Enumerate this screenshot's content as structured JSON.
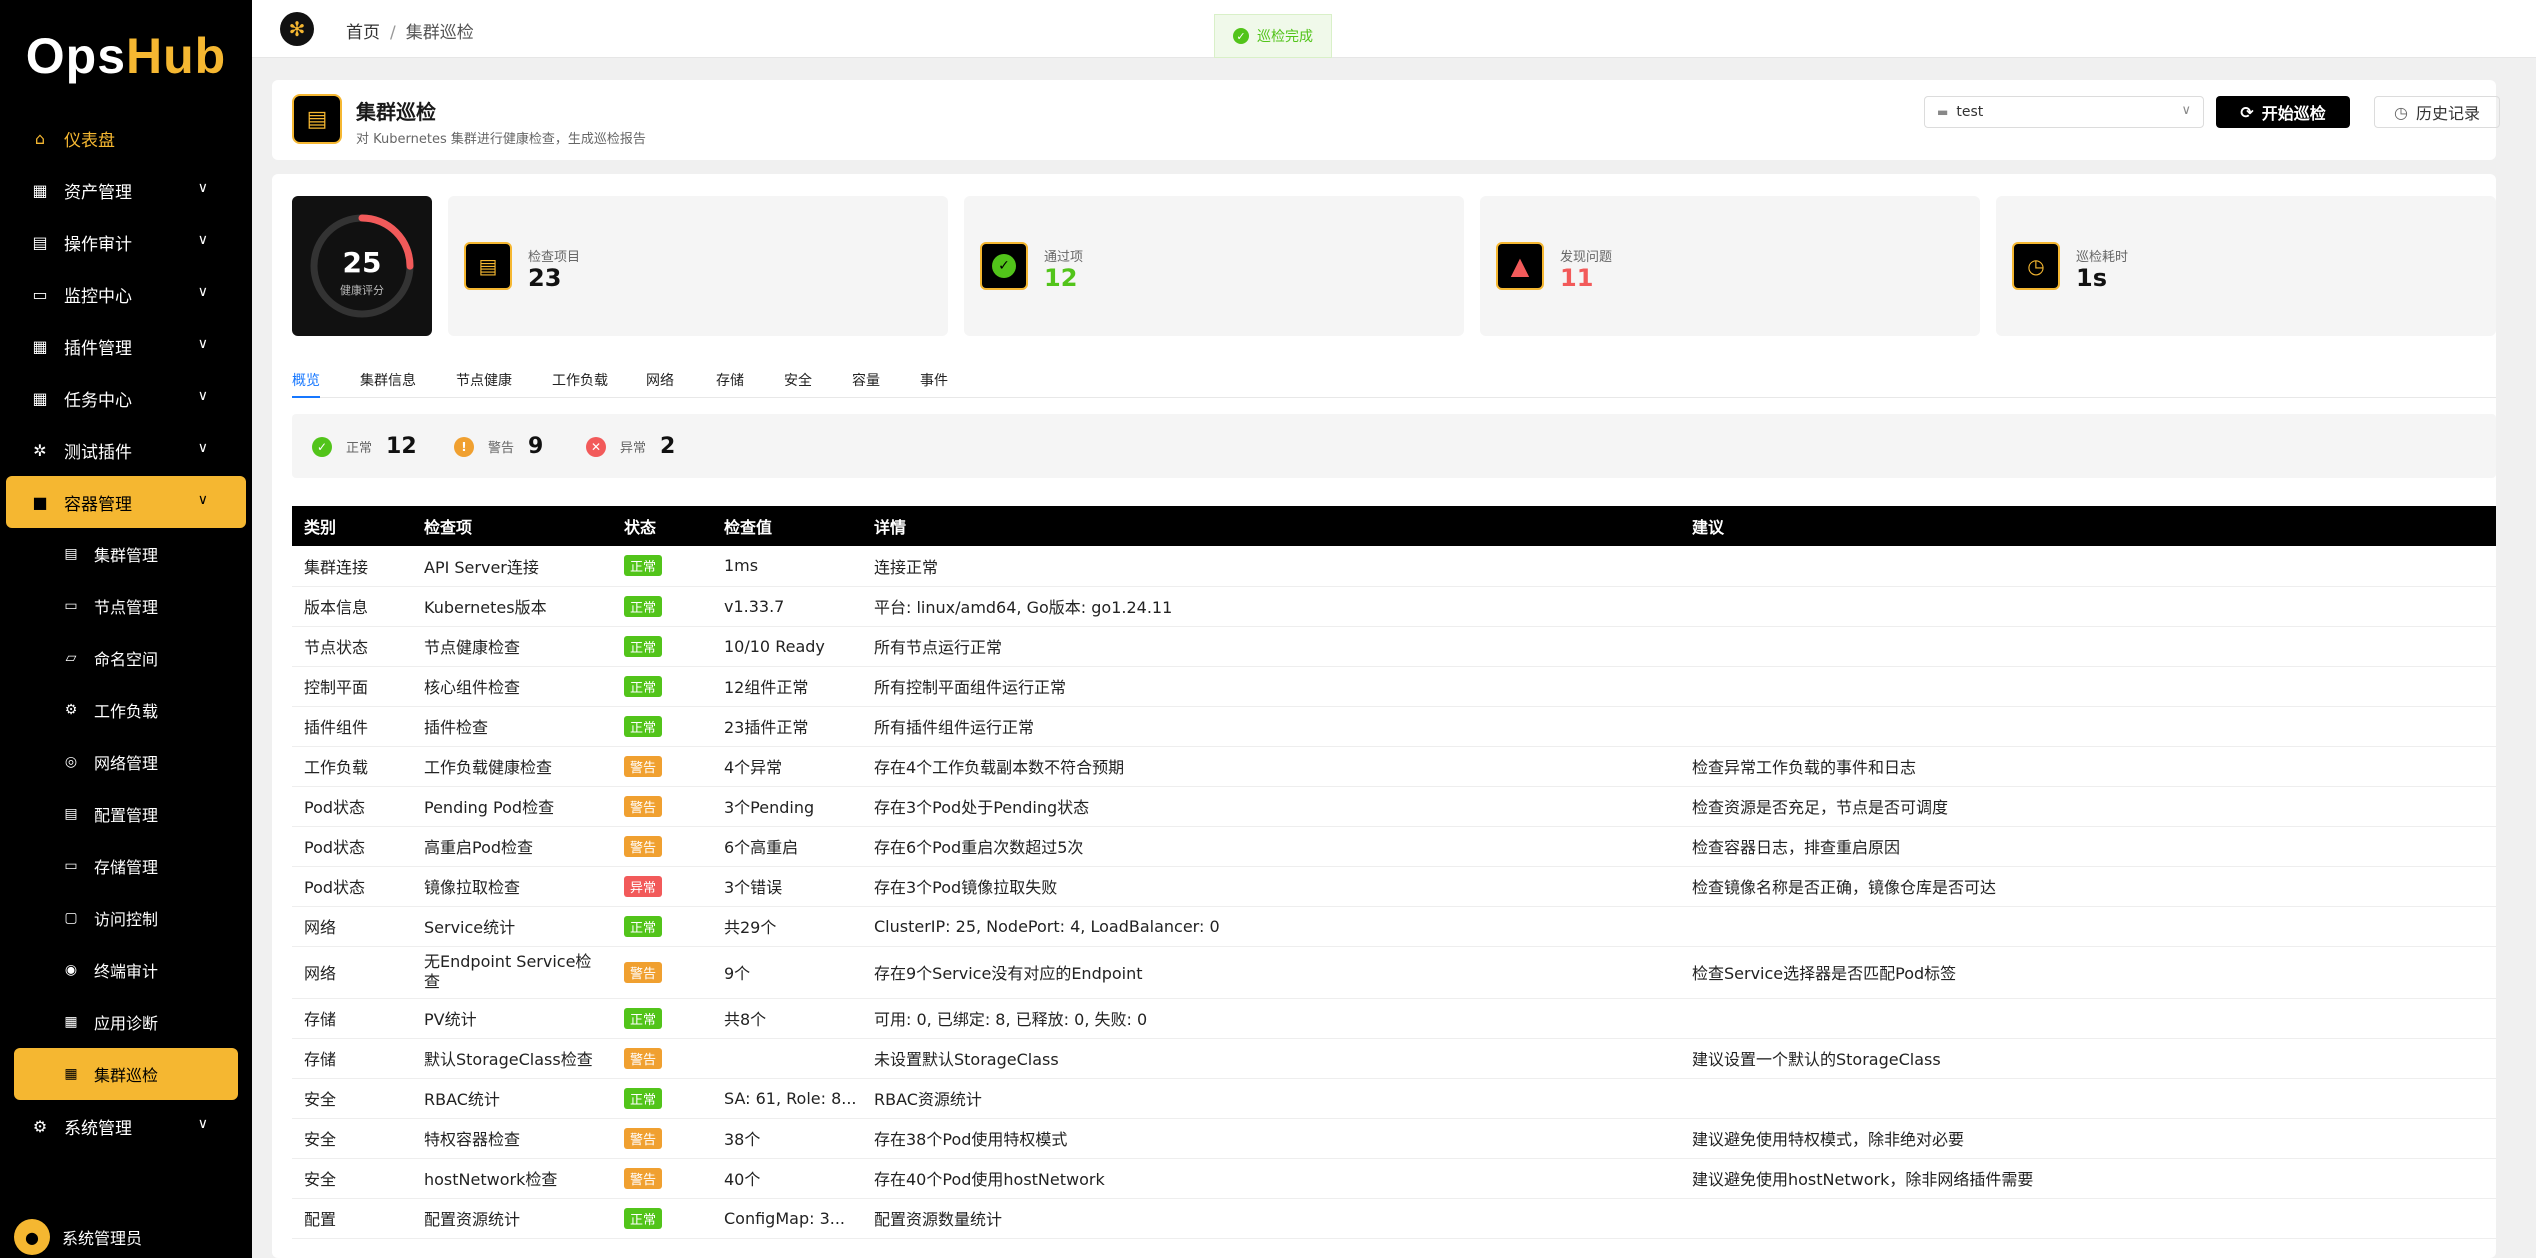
{
  "app": {
    "logo_ops": "Ops",
    "logo_hub": "Hub"
  },
  "sidebar": {
    "items": [
      {
        "label": "仪表盘",
        "icon": "home-icon"
      },
      {
        "label": "资产管理",
        "icon": "grid-icon"
      },
      {
        "label": "操作审计",
        "icon": "document-icon"
      },
      {
        "label": "监控中心",
        "icon": "monitor-icon"
      },
      {
        "label": "插件管理",
        "icon": "apps-icon"
      },
      {
        "label": "任务中心",
        "icon": "apps-icon"
      },
      {
        "label": "测试插件",
        "icon": "plugin-icon"
      },
      {
        "label": "容器管理",
        "icon": "container-icon"
      }
    ],
    "sub_items": [
      {
        "label": "集群管理",
        "icon": "cluster-icon"
      },
      {
        "label": "节点管理",
        "icon": "node-icon"
      },
      {
        "label": "命名空间",
        "icon": "folder-icon"
      },
      {
        "label": "工作负载",
        "icon": "gear-icon"
      },
      {
        "label": "网络管理",
        "icon": "network-icon"
      },
      {
        "label": "配置管理",
        "icon": "file-icon"
      },
      {
        "label": "存储管理",
        "icon": "storage-icon"
      },
      {
        "label": "访问控制",
        "icon": "lock-icon"
      },
      {
        "label": "终端审计",
        "icon": "eye-icon"
      },
      {
        "label": "应用诊断",
        "icon": "apps-icon"
      },
      {
        "label": "集群巡检",
        "icon": "apps-icon"
      }
    ],
    "system": {
      "label": "系统管理",
      "icon": "gear-icon"
    },
    "user": {
      "name": "系统管理员"
    }
  },
  "topbar": {
    "home": "首页",
    "sep": "/",
    "current": "集群巡检",
    "toast": "巡检完成"
  },
  "header": {
    "title": "集群巡检",
    "subtitle": "对 Kubernetes 集群进行健康检查，生成巡检报告",
    "cluster": "test",
    "start_label": "开始巡检",
    "history_label": "历史记录"
  },
  "score": {
    "value": 25,
    "label": "健康评分",
    "color": "#f25a5a"
  },
  "stats": [
    {
      "label": "检查项目",
      "value": "23",
      "color": "#111111"
    },
    {
      "label": "通过项",
      "value": "12",
      "color": "#52c41a"
    },
    {
      "label": "发现问题",
      "value": "11",
      "color": "#f25a5a"
    },
    {
      "label": "巡检耗时",
      "value": "1s",
      "color": "#111111"
    }
  ],
  "tabs": [
    "概览",
    "集群信息",
    "节点健康",
    "工作负载",
    "网络",
    "存储",
    "安全",
    "容量",
    "事件"
  ],
  "summary": [
    {
      "label": "正常",
      "value": "12",
      "color": "#52c41a",
      "glyph": "✓"
    },
    {
      "label": "警告",
      "value": "9",
      "color": "#f0a030",
      "glyph": "!"
    },
    {
      "label": "异常",
      "value": "2",
      "color": "#f25a5a",
      "glyph": "✕"
    }
  ],
  "table": {
    "headers": [
      "类别",
      "检查项",
      "状态",
      "检查值",
      "详情",
      "建议"
    ],
    "rows": [
      {
        "category": "集群连接",
        "item": "API Server连接",
        "status": "正常",
        "level": "normal",
        "value": "1ms",
        "detail": "连接正常",
        "advice": ""
      },
      {
        "category": "版本信息",
        "item": "Kubernetes版本",
        "status": "正常",
        "level": "normal",
        "value": "v1.33.7",
        "detail": "平台: linux/amd64, Go版本: go1.24.11",
        "advice": ""
      },
      {
        "category": "节点状态",
        "item": "节点健康检查",
        "status": "正常",
        "level": "normal",
        "value": "10/10 Ready",
        "detail": "所有节点运行正常",
        "advice": ""
      },
      {
        "category": "控制平面",
        "item": "核心组件检查",
        "status": "正常",
        "level": "normal",
        "value": "12组件正常",
        "detail": "所有控制平面组件运行正常",
        "advice": ""
      },
      {
        "category": "插件组件",
        "item": "插件检查",
        "status": "正常",
        "level": "normal",
        "value": "23插件正常",
        "detail": "所有插件组件运行正常",
        "advice": ""
      },
      {
        "category": "工作负载",
        "item": "工作负载健康检查",
        "status": "警告",
        "level": "warning",
        "value": "4个异常",
        "detail": "存在4个工作负载副本数不符合预期",
        "advice": "检查异常工作负载的事件和日志"
      },
      {
        "category": "Pod状态",
        "item": "Pending Pod检查",
        "status": "警告",
        "level": "warning",
        "value": "3个Pending",
        "detail": "存在3个Pod处于Pending状态",
        "advice": "检查资源是否充足，节点是否可调度"
      },
      {
        "category": "Pod状态",
        "item": "高重启Pod检查",
        "status": "警告",
        "level": "warning",
        "value": "6个高重启",
        "detail": "存在6个Pod重启次数超过5次",
        "advice": "检查容器日志，排查重启原因"
      },
      {
        "category": "Pod状态",
        "item": "镜像拉取检查",
        "status": "异常",
        "level": "error",
        "value": "3个错误",
        "detail": "存在3个Pod镜像拉取失败",
        "advice": "检查镜像名称是否正确，镜像仓库是否可达"
      },
      {
        "category": "网络",
        "item": "Service统计",
        "status": "正常",
        "level": "normal",
        "value": "共29个",
        "detail": "ClusterIP: 25, NodePort: 4, LoadBalancer: 0",
        "advice": ""
      },
      {
        "category": "网络",
        "item": "无Endpoint Service检\n查",
        "status": "警告",
        "level": "warning",
        "value": "9个",
        "detail": "存在9个Service没有对应的Endpoint",
        "advice": "检查Service选择器是否匹配Pod标签"
      },
      {
        "category": "存储",
        "item": "PV统计",
        "status": "正常",
        "level": "normal",
        "value": "共8个",
        "detail": "可用: 0, 已绑定: 8, 已释放: 0, 失败: 0",
        "advice": ""
      },
      {
        "category": "存储",
        "item": "默认StorageClass检查",
        "status": "警告",
        "level": "warning",
        "value": "",
        "detail": "未设置默认StorageClass",
        "advice": "建议设置一个默认的StorageClass"
      },
      {
        "category": "安全",
        "item": "RBAC统计",
        "status": "正常",
        "level": "normal",
        "value": "SA: 61, Role: 8...",
        "detail": "RBAC资源统计",
        "advice": ""
      },
      {
        "category": "安全",
        "item": "特权容器检查",
        "status": "警告",
        "level": "warning",
        "value": "38个",
        "detail": "存在38个Pod使用特权模式",
        "advice": "建议避免使用特权模式，除非绝对必要"
      },
      {
        "category": "安全",
        "item": "hostNetwork检查",
        "status": "警告",
        "level": "warning",
        "value": "40个",
        "detail": "存在40个Pod使用hostNetwork",
        "advice": "建议避免使用hostNetwork，除非网络插件需要"
      },
      {
        "category": "配置",
        "item": "配置资源统计",
        "status": "正常",
        "level": "normal",
        "value": "ConfigMap: 3...",
        "detail": "配置资源数量统计",
        "advice": ""
      }
    ]
  }
}
